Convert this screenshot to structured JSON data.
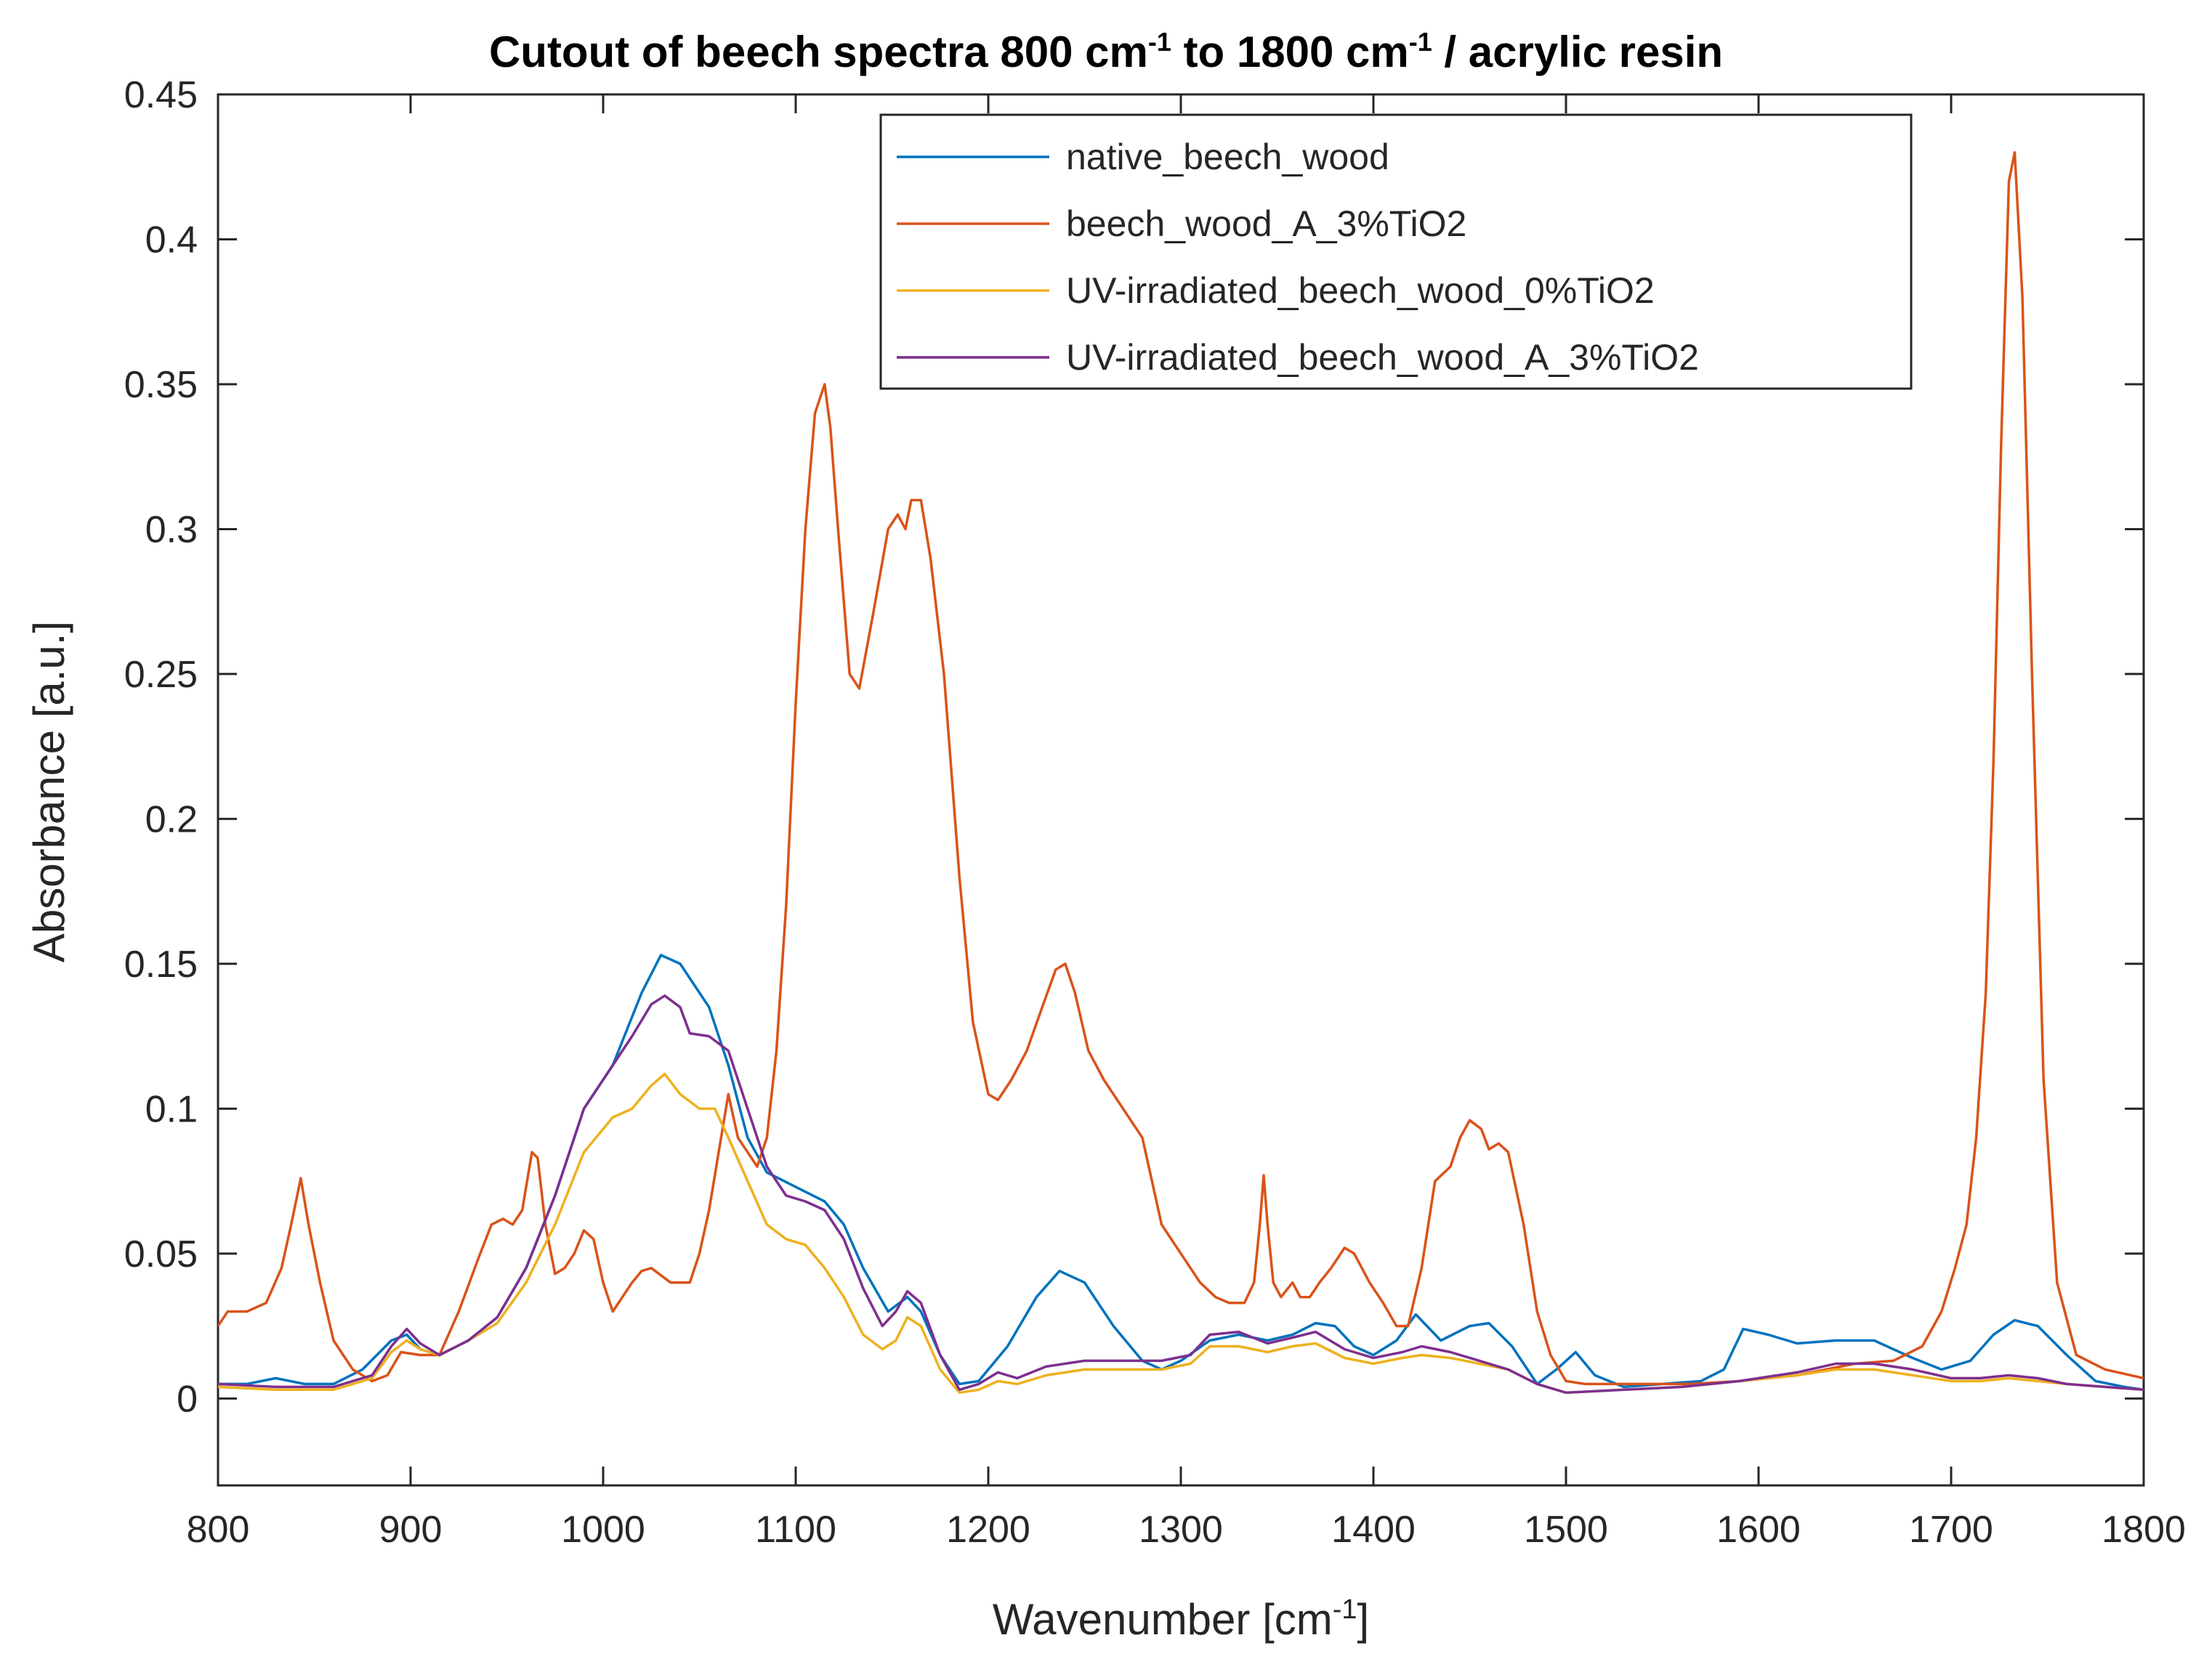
{
  "chart_data": {
    "type": "line",
    "title": {
      "prefix": "Cutout of beech spectra 800 cm",
      "sup1": "-1",
      "middle": " to 1800 cm",
      "sup2": "-1",
      "suffix": " / acrylic resin"
    },
    "xlabel": {
      "prefix": "Wavenumber [cm",
      "sup": "-1",
      "suffix": "]"
    },
    "ylabel": "Absorbance [a.u.]",
    "xlim": [
      800,
      1800
    ],
    "ylim": [
      -0.03,
      0.45
    ],
    "xticks": [
      800,
      900,
      1000,
      1100,
      1200,
      1300,
      1400,
      1500,
      1600,
      1700,
      1800
    ],
    "xtick_labels": [
      "800",
      "900",
      "1000",
      "1100",
      "1200",
      "1300",
      "1400",
      "1500",
      "1600",
      "1700",
      "1800"
    ],
    "yticks": [
      0,
      0.05,
      0.1,
      0.15,
      0.2,
      0.25,
      0.3,
      0.35,
      0.4,
      0.45
    ],
    "ytick_labels": [
      "0",
      "0.05",
      "0.1",
      "0.15",
      "0.2",
      "0.25",
      "0.3",
      "0.35",
      "0.4",
      "0.45"
    ],
    "grid": false,
    "legend_position": "top-right",
    "series": [
      {
        "name": "native_beech_wood",
        "color": "#0072BD",
        "x": [
          800,
          815,
          830,
          845,
          860,
          875,
          890,
          898,
          905,
          915,
          930,
          945,
          960,
          975,
          990,
          1005,
          1020,
          1030,
          1040,
          1055,
          1065,
          1075,
          1085,
          1100,
          1115,
          1125,
          1135,
          1148,
          1158,
          1165,
          1175,
          1185,
          1195,
          1210,
          1225,
          1237,
          1250,
          1265,
          1280,
          1290,
          1300,
          1315,
          1330,
          1345,
          1358,
          1370,
          1380,
          1390,
          1400,
          1412,
          1422,
          1435,
          1450,
          1460,
          1472,
          1485,
          1495,
          1505,
          1515,
          1530,
          1550,
          1570,
          1582,
          1592,
          1605,
          1620,
          1640,
          1660,
          1680,
          1695,
          1710,
          1722,
          1733,
          1745,
          1760,
          1775,
          1790,
          1800
        ],
        "values": [
          0.005,
          0.005,
          0.007,
          0.005,
          0.005,
          0.01,
          0.02,
          0.022,
          0.017,
          0.015,
          0.02,
          0.028,
          0.045,
          0.07,
          0.1,
          0.115,
          0.14,
          0.153,
          0.15,
          0.135,
          0.115,
          0.09,
          0.078,
          0.073,
          0.068,
          0.06,
          0.045,
          0.03,
          0.035,
          0.03,
          0.015,
          0.005,
          0.006,
          0.018,
          0.035,
          0.044,
          0.04,
          0.025,
          0.013,
          0.01,
          0.013,
          0.02,
          0.022,
          0.02,
          0.022,
          0.026,
          0.025,
          0.018,
          0.015,
          0.02,
          0.029,
          0.02,
          0.025,
          0.026,
          0.018,
          0.005,
          0.01,
          0.016,
          0.008,
          0.004,
          0.005,
          0.006,
          0.01,
          0.024,
          0.022,
          0.019,
          0.02,
          0.02,
          0.014,
          0.01,
          0.013,
          0.022,
          0.027,
          0.025,
          0.015,
          0.006,
          0.004,
          0.003
        ]
      },
      {
        "name": "beech_wood_A_3%TiO2",
        "color": "#D95319",
        "x": [
          800,
          805,
          815,
          825,
          833,
          838,
          843,
          847,
          853,
          860,
          870,
          880,
          888,
          895,
          905,
          915,
          925,
          935,
          942,
          948,
          953,
          958,
          963,
          966,
          970,
          975,
          980,
          985,
          990,
          995,
          1000,
          1005,
          1010,
          1015,
          1020,
          1025,
          1035,
          1045,
          1050,
          1055,
          1060,
          1065,
          1070,
          1075,
          1080,
          1085,
          1090,
          1095,
          1100,
          1105,
          1110,
          1115,
          1118,
          1122,
          1128,
          1133,
          1140,
          1148,
          1153,
          1157,
          1160,
          1165,
          1170,
          1177,
          1185,
          1192,
          1200,
          1205,
          1212,
          1220,
          1228,
          1235,
          1240,
          1245,
          1252,
          1260,
          1270,
          1280,
          1285,
          1290,
          1300,
          1310,
          1318,
          1325,
          1333,
          1338,
          1341,
          1343,
          1345,
          1348,
          1352,
          1358,
          1362,
          1367,
          1372,
          1378,
          1385,
          1390,
          1398,
          1405,
          1412,
          1418,
          1425,
          1432,
          1440,
          1445,
          1450,
          1456,
          1460,
          1465,
          1470,
          1478,
          1485,
          1492,
          1500,
          1510,
          1525,
          1545,
          1565,
          1590,
          1620,
          1650,
          1670,
          1685,
          1695,
          1702,
          1708,
          1713,
          1718,
          1722,
          1726,
          1730,
          1733,
          1737,
          1742,
          1748,
          1755,
          1765,
          1780,
          1800
        ],
        "values": [
          0.025,
          0.03,
          0.03,
          0.033,
          0.045,
          0.06,
          0.076,
          0.06,
          0.04,
          0.02,
          0.01,
          0.006,
          0.008,
          0.016,
          0.015,
          0.015,
          0.03,
          0.048,
          0.06,
          0.062,
          0.06,
          0.065,
          0.085,
          0.083,
          0.06,
          0.043,
          0.045,
          0.05,
          0.058,
          0.055,
          0.04,
          0.03,
          0.035,
          0.04,
          0.044,
          0.045,
          0.04,
          0.04,
          0.05,
          0.065,
          0.085,
          0.105,
          0.09,
          0.085,
          0.08,
          0.09,
          0.12,
          0.17,
          0.24,
          0.3,
          0.34,
          0.35,
          0.335,
          0.3,
          0.25,
          0.245,
          0.27,
          0.3,
          0.305,
          0.3,
          0.31,
          0.31,
          0.29,
          0.25,
          0.18,
          0.13,
          0.105,
          0.103,
          0.11,
          0.12,
          0.135,
          0.148,
          0.15,
          0.14,
          0.12,
          0.11,
          0.1,
          0.09,
          0.075,
          0.06,
          0.05,
          0.04,
          0.035,
          0.033,
          0.033,
          0.04,
          0.06,
          0.077,
          0.06,
          0.04,
          0.035,
          0.04,
          0.035,
          0.035,
          0.04,
          0.045,
          0.052,
          0.05,
          0.04,
          0.033,
          0.025,
          0.025,
          0.045,
          0.075,
          0.08,
          0.09,
          0.096,
          0.093,
          0.086,
          0.088,
          0.085,
          0.06,
          0.03,
          0.015,
          0.006,
          0.005,
          0.005,
          0.005,
          0.005,
          0.006,
          0.008,
          0.012,
          0.013,
          0.018,
          0.03,
          0.045,
          0.06,
          0.09,
          0.14,
          0.22,
          0.33,
          0.42,
          0.43,
          0.38,
          0.25,
          0.11,
          0.04,
          0.015,
          0.01,
          0.007
        ]
      },
      {
        "name": "UV-irradiated_beech_wood_0%TiO2",
        "color": "#EDB120",
        "x": [
          800,
          830,
          860,
          880,
          890,
          898,
          905,
          915,
          930,
          945,
          960,
          975,
          990,
          1005,
          1015,
          1025,
          1032,
          1040,
          1050,
          1058,
          1065,
          1075,
          1085,
          1095,
          1105,
          1115,
          1125,
          1135,
          1145,
          1152,
          1158,
          1165,
          1175,
          1185,
          1195,
          1205,
          1215,
          1230,
          1250,
          1270,
          1290,
          1305,
          1315,
          1330,
          1345,
          1358,
          1370,
          1385,
          1400,
          1415,
          1425,
          1440,
          1455,
          1470,
          1485,
          1500,
          1530,
          1560,
          1590,
          1620,
          1640,
          1660,
          1680,
          1700,
          1715,
          1730,
          1745,
          1760,
          1780,
          1800
        ],
        "values": [
          0.004,
          0.003,
          0.003,
          0.007,
          0.016,
          0.02,
          0.017,
          0.015,
          0.02,
          0.026,
          0.04,
          0.06,
          0.085,
          0.097,
          0.1,
          0.108,
          0.112,
          0.105,
          0.1,
          0.1,
          0.09,
          0.075,
          0.06,
          0.055,
          0.053,
          0.045,
          0.035,
          0.022,
          0.017,
          0.02,
          0.028,
          0.025,
          0.01,
          0.002,
          0.003,
          0.006,
          0.005,
          0.008,
          0.01,
          0.01,
          0.01,
          0.012,
          0.018,
          0.018,
          0.016,
          0.018,
          0.019,
          0.014,
          0.012,
          0.014,
          0.015,
          0.014,
          0.012,
          0.01,
          0.005,
          0.002,
          0.003,
          0.004,
          0.006,
          0.008,
          0.01,
          0.01,
          0.008,
          0.006,
          0.006,
          0.007,
          0.006,
          0.005,
          0.004,
          0.003
        ]
      },
      {
        "name": "UV-irradiated_beech_wood_A_3%TiO2",
        "color": "#7E2F8E",
        "x": [
          800,
          830,
          860,
          880,
          890,
          898,
          905,
          915,
          930,
          945,
          960,
          975,
          990,
          1005,
          1015,
          1025,
          1032,
          1040,
          1045,
          1055,
          1065,
          1075,
          1085,
          1095,
          1105,
          1115,
          1125,
          1135,
          1145,
          1152,
          1158,
          1165,
          1175,
          1185,
          1195,
          1205,
          1215,
          1230,
          1250,
          1270,
          1290,
          1305,
          1315,
          1330,
          1345,
          1358,
          1370,
          1385,
          1400,
          1415,
          1425,
          1440,
          1455,
          1470,
          1485,
          1500,
          1530,
          1560,
          1590,
          1620,
          1640,
          1660,
          1680,
          1700,
          1715,
          1730,
          1745,
          1760,
          1780,
          1800
        ],
        "values": [
          0.005,
          0.004,
          0.004,
          0.008,
          0.018,
          0.024,
          0.019,
          0.015,
          0.02,
          0.028,
          0.045,
          0.07,
          0.1,
          0.115,
          0.125,
          0.136,
          0.139,
          0.135,
          0.126,
          0.125,
          0.12,
          0.1,
          0.08,
          0.07,
          0.068,
          0.065,
          0.055,
          0.038,
          0.025,
          0.03,
          0.037,
          0.033,
          0.015,
          0.003,
          0.005,
          0.009,
          0.007,
          0.011,
          0.013,
          0.013,
          0.013,
          0.015,
          0.022,
          0.023,
          0.019,
          0.021,
          0.023,
          0.017,
          0.014,
          0.016,
          0.018,
          0.016,
          0.013,
          0.01,
          0.005,
          0.002,
          0.003,
          0.004,
          0.006,
          0.009,
          0.012,
          0.012,
          0.01,
          0.007,
          0.007,
          0.008,
          0.007,
          0.005,
          0.004,
          0.003
        ]
      }
    ]
  }
}
